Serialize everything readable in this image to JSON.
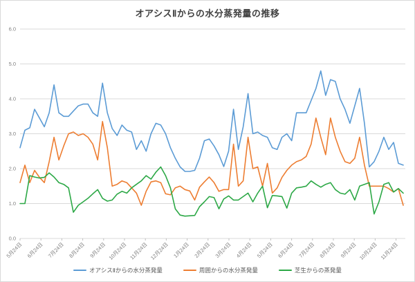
{
  "frame": {
    "background": "#ffffff",
    "border_color": "#d9d9d9",
    "gridline_color": "#d9d9d9",
    "tick_color": "#bfbfbf",
    "axis_text_color": "#7f7f7f",
    "title_color": "#404040"
  },
  "chart_data": {
    "type": "line",
    "title": "オアシスⅡからの水分蒸発量の推移",
    "xlabel": "",
    "ylabel": "",
    "ylim": [
      0,
      6
    ],
    "y_tick_labels": [
      "0.0",
      "1.0",
      "2.0",
      "3.0",
      "4.0",
      "5.0",
      "6.0"
    ],
    "grid": "horizontal",
    "legend_position": "bottom",
    "x_tick_labels": [
      "5月24日",
      "6月24日",
      "7月24日",
      "8月24日",
      "9月24日",
      "10月24日",
      "11月24日",
      "12月24日",
      "1月24日",
      "2月24日",
      "3月24日",
      "4月24日",
      "5月24日",
      "6月24日",
      "7月24日",
      "8月24日",
      "9月24日",
      "10月24日",
      "11月24日"
    ],
    "x_unit": "weekly points, monthly tick labels",
    "series": [
      {
        "name": "オアシスⅡからの水分蒸発量",
        "color": "#5B9BD5",
        "values": [
          2.6,
          3.1,
          3.17,
          3.7,
          3.45,
          3.2,
          3.6,
          4.4,
          3.6,
          3.5,
          3.5,
          3.65,
          3.8,
          3.85,
          3.85,
          3.6,
          3.5,
          4.45,
          3.6,
          3.15,
          2.95,
          3.25,
          3.1,
          3.05,
          2.55,
          2.8,
          2.5,
          3.0,
          3.3,
          3.25,
          3.0,
          2.6,
          2.3,
          2.05,
          1.92,
          1.92,
          1.95,
          2.3,
          2.8,
          2.85,
          2.65,
          2.4,
          2.06,
          2.5,
          3.7,
          2.55,
          3.2,
          4.15,
          3.0,
          3.05,
          2.95,
          2.9,
          2.6,
          2.55,
          2.9,
          3.0,
          2.8,
          3.6,
          3.6,
          3.6,
          3.95,
          4.3,
          4.8,
          4.1,
          4.55,
          4.5,
          4.0,
          3.7,
          3.3,
          3.8,
          4.3,
          3.3,
          2.05,
          2.2,
          2.5,
          2.9,
          2.55,
          2.75,
          2.15,
          2.1
        ]
      },
      {
        "name": "周囲からの水分蒸発量",
        "color": "#ED7D31",
        "values": [
          1.6,
          2.1,
          1.6,
          1.95,
          1.75,
          1.6,
          2.2,
          2.9,
          2.25,
          2.65,
          3.0,
          3.05,
          2.95,
          3.0,
          2.9,
          2.7,
          2.25,
          3.35,
          2.6,
          1.5,
          1.55,
          1.65,
          1.6,
          1.45,
          1.3,
          0.95,
          1.35,
          1.62,
          1.65,
          1.6,
          1.28,
          1.25,
          1.45,
          1.5,
          1.4,
          1.36,
          1.1,
          1.47,
          1.62,
          1.76,
          1.6,
          1.35,
          1.4,
          1.4,
          2.7,
          1.5,
          1.65,
          2.9,
          2.0,
          2.05,
          1.5,
          2.15,
          1.3,
          1.45,
          1.75,
          1.95,
          2.1,
          2.2,
          2.25,
          2.35,
          2.7,
          3.45,
          2.9,
          2.4,
          3.45,
          2.9,
          2.5,
          2.2,
          2.15,
          2.3,
          2.9,
          2.1,
          1.5,
          1.5,
          1.5,
          1.5,
          1.43,
          1.33,
          1.43,
          0.95
        ]
      },
      {
        "name": "芝生からの蒸発量",
        "color": "#2CA846",
        "values": [
          1.0,
          1.0,
          1.8,
          1.76,
          1.73,
          1.75,
          1.88,
          1.76,
          1.6,
          1.55,
          1.45,
          0.75,
          0.95,
          1.05,
          1.15,
          1.28,
          1.4,
          1.15,
          1.07,
          1.1,
          1.27,
          1.35,
          1.3,
          1.45,
          1.55,
          1.65,
          1.8,
          1.7,
          1.9,
          2.05,
          1.8,
          1.45,
          0.85,
          0.67,
          0.64,
          0.65,
          0.66,
          0.91,
          1.05,
          1.2,
          1.17,
          0.85,
          1.13,
          1.22,
          1.1,
          1.1,
          1.2,
          1.3,
          1.05,
          1.3,
          1.5,
          0.88,
          1.23,
          1.22,
          1.2,
          0.87,
          1.3,
          1.45,
          1.47,
          1.5,
          1.65,
          1.55,
          1.47,
          1.55,
          1.6,
          1.4,
          1.3,
          1.27,
          1.4,
          1.1,
          1.5,
          1.55,
          1.6,
          0.7,
          1.05,
          1.55,
          1.6,
          1.33,
          1.43,
          1.3
        ]
      }
    ]
  }
}
